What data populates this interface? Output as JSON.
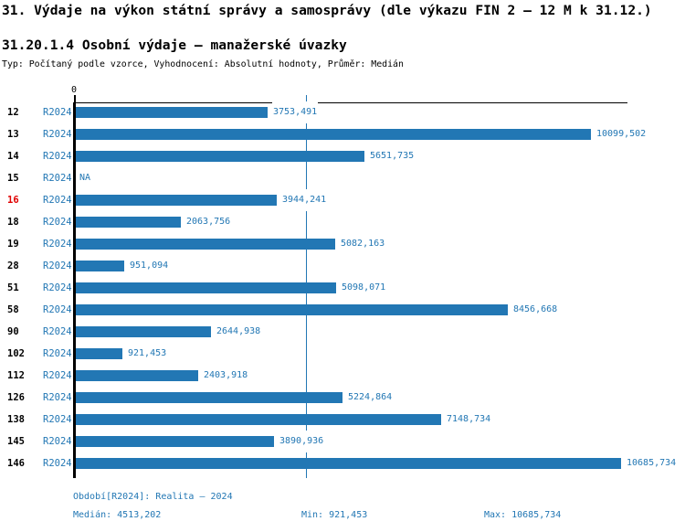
{
  "title": "31. Výdaje na výkon státní správy a samosprávy (dle výkazu FIN 2 – 12 M k 31.12.)",
  "subtitle": "31.20.1.4 Osobní výdaje – manažerské úvazky",
  "meta_line": "Typ: Počítaný podle vzorce, Vyhodnocení: Absolutní hodnoty, Průměr: Medián",
  "colors": {
    "bar_blue": "#2277b4",
    "text_blue": "#2277b4",
    "highlight_red": "#e00000",
    "axis_black": "#000000",
    "background": "#ffffff"
  },
  "chart_data": {
    "type": "bar",
    "orientation": "horizontal",
    "title": "31.20.1.4 Osobní výdaje – manažerské úvazky",
    "axis_zero_label": "0",
    "xlim": [
      0,
      10790
    ],
    "grid": false,
    "categories": [
      "12",
      "13",
      "14",
      "15",
      "16",
      "18",
      "19",
      "28",
      "51",
      "58",
      "90",
      "102",
      "112",
      "126",
      "138",
      "145",
      "146"
    ],
    "series": [
      {
        "name": "R2024",
        "values": [
          3753.491,
          10099.502,
          5651.735,
          null,
          3944.241,
          2063.756,
          5082.163,
          951.094,
          5098.071,
          8456.668,
          2644.938,
          921.453,
          2403.918,
          5224.864,
          7148.734,
          3890.936,
          10685.734
        ]
      }
    ],
    "value_labels": [
      "3753,491",
      "10099,502",
      "5651,735",
      "NA",
      "3944,241",
      "2063,756",
      "5082,163",
      "951,094",
      "5098,071",
      "8456,668",
      "2644,938",
      "921,453",
      "2403,918",
      "5224,864",
      "7148,734",
      "3890,936",
      "10685,734"
    ],
    "na_label": "NA",
    "highlighted_categories": [
      "16"
    ],
    "median_line_value": 4513.202
  },
  "footer": {
    "period": "Období[R2024]: Realita – 2024",
    "median": "Medián: 4513,202",
    "min": "Min: 921,453",
    "max": "Max: 10685,734"
  }
}
